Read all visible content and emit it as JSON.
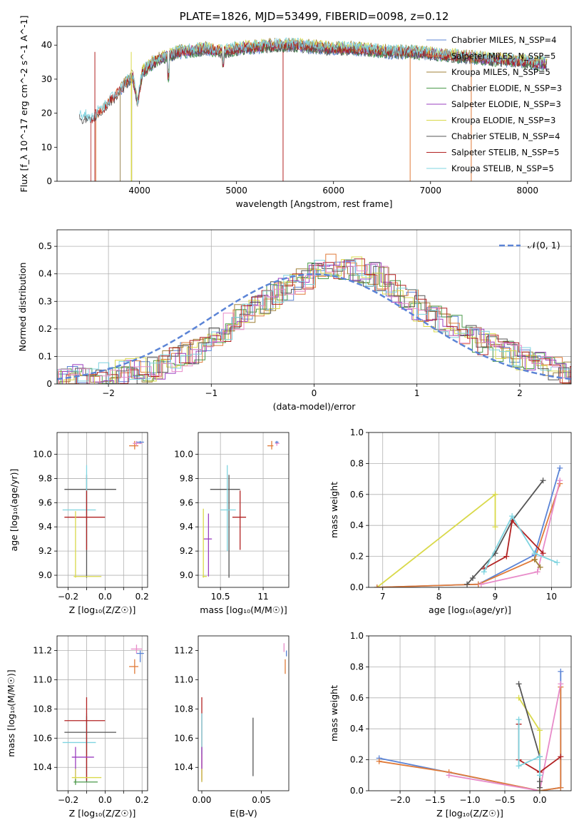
{
  "chart_data": [
    {
      "type": "line",
      "title": "PLATE=1826, MJD=53499, FIBERID=0098, z=0.12",
      "xlabel": "wavelength [Angstrom, rest frame]",
      "ylabel": "Flux [f_λ 10^-17 erg cm^-2 s^-1 A^-1]",
      "xlim": [
        3150,
        8450
      ],
      "ylim": [
        0,
        45.5
      ],
      "xticks": [
        4000,
        5000,
        6000,
        7000,
        8000
      ],
      "yticks": [
        0,
        10,
        20,
        30,
        40
      ],
      "grid": false,
      "legend_position": "top-right",
      "spectrum_shape": {
        "x": [
          3380,
          3450,
          3500,
          3560,
          3620,
          3700,
          3780,
          3860,
          3930,
          3980,
          4030,
          4100,
          4200,
          4300,
          4400,
          4550,
          4700,
          4850,
          5000,
          5200,
          5400,
          5600,
          5800,
          6000,
          6200,
          6400,
          6600,
          6800,
          7000,
          7200,
          7400,
          7600,
          7800,
          8000,
          8200
        ],
        "y": [
          19,
          19,
          18,
          20,
          21,
          24,
          26,
          29,
          31,
          23,
          32,
          34,
          36,
          37,
          38,
          38.5,
          39,
          38,
          39,
          39.5,
          40,
          40,
          39.5,
          39,
          39,
          38.5,
          38,
          38,
          37.5,
          37,
          36.5,
          36,
          35.5,
          35,
          34.5
        ]
      },
      "series": [
        {
          "name": "Chabrier MILES, N_SSP=4",
          "color": "#5b84d6",
          "x_start": 3800
        },
        {
          "name": "Salpeter MILES, N_SSP=5",
          "color": "#e07b39",
          "x_start": 3550
        },
        {
          "name": "Kroupa MILES, N_SSP=5",
          "color": "#a0823a",
          "x_start": 3800
        },
        {
          "name": "Chabrier ELODIE, N_SSP=3",
          "color": "#4a9a4a",
          "x_start": 3920
        },
        {
          "name": "Salpeter ELODIE, N_SSP=3",
          "color": "#9b3fc0",
          "x_start": 3920
        },
        {
          "name": "Kroupa ELODIE, N_SSP=3",
          "color": "#d9d94a",
          "x_start": 3920
        },
        {
          "name": "Chabrier STELIB, N_SSP=4",
          "color": "#555555",
          "x_start": 3380
        },
        {
          "name": "Salpeter STELIB, N_SSP=5",
          "color": "#b22222",
          "x_start": 3500
        },
        {
          "name": "Kroupa STELIB, N_SSP=5",
          "color": "#7fd4e0",
          "x_start": 3380
        }
      ]
    },
    {
      "type": "histogram",
      "xlabel": "(data-model)/error",
      "ylabel": "Normed distribution",
      "xlim": [
        -2.5,
        2.5
      ],
      "ylim": [
        0,
        0.56
      ],
      "xticks": [
        -2,
        -1,
        0,
        1,
        2
      ],
      "yticks": [
        0.0,
        0.1,
        0.2,
        0.3,
        0.4,
        0.5
      ],
      "grid": true,
      "legend_position": "top-right",
      "reference_curve": {
        "name": "𝒩(0, 1)",
        "color": "#5b84d6",
        "mean": 0,
        "sigma": 1
      },
      "bin_width": 0.1,
      "base_profile": {
        "x": [
          -2.5,
          -2.0,
          -1.5,
          -1.0,
          -0.8,
          -0.5,
          -0.2,
          0.0,
          0.2,
          0.4,
          0.7,
          1.0,
          1.3,
          1.6,
          2.0,
          2.5
        ],
        "y": [
          0.02,
          0.03,
          0.06,
          0.15,
          0.22,
          0.3,
          0.36,
          0.4,
          0.43,
          0.42,
          0.38,
          0.28,
          0.22,
          0.16,
          0.09,
          0.04
        ]
      },
      "series_colors": [
        "#5b84d6",
        "#e07b39",
        "#a0823a",
        "#4a9a4a",
        "#9b3fc0",
        "#d9d94a",
        "#555555",
        "#b22222",
        "#7fd4e0",
        "#e88bc9"
      ]
    },
    {
      "type": "errorbar",
      "xlabel": "Z [log₁₀(Z/Z☉)]",
      "ylabel": "age  [log₁₀(age/yr)]",
      "xlim": [
        -0.26,
        0.23
      ],
      "ylim": [
        8.9,
        10.18
      ],
      "xticks": [
        -0.2,
        -0.1,
        0.0,
        0.1,
        0.2
      ],
      "xtick_labels": [
        "−0.2",
        "",
        "0.0",
        "",
        "0.2"
      ],
      "yticks": [
        9.0,
        9.2,
        9.4,
        9.6,
        9.8,
        10.0
      ],
      "grid": true,
      "points": [
        {
          "x": -0.1,
          "y": 9.71,
          "xerr": [
            0.12,
            0.16
          ],
          "yerr": [
            0.73,
            0.12
          ],
          "color": "#555555"
        },
        {
          "x": -0.1,
          "y": 9.54,
          "xerr": [
            0.13,
            0.05
          ],
          "yerr": [
            0.3,
            0.37
          ],
          "color": "#7fd4e0"
        },
        {
          "x": -0.1,
          "y": 9.48,
          "xerr": [
            0.12,
            0.1
          ],
          "yerr": [
            0.27,
            0.22
          ],
          "color": "#b22222"
        },
        {
          "x": -0.16,
          "y": 8.99,
          "xerr": [
            0.01,
            0.14
          ],
          "yerr": [
            0.01,
            0.54
          ],
          "color": "#d9d94a"
        },
        {
          "x": 0.16,
          "y": 10.07,
          "xerr": [
            0.03,
            0.02
          ],
          "yerr": [
            0.03,
            0.04
          ],
          "color": "#e07b39"
        },
        {
          "x": 0.17,
          "y": 10.09,
          "xerr": [
            0.02,
            0.03
          ],
          "yerr": [
            0.02,
            0.02
          ],
          "color": "#e88bc9"
        },
        {
          "x": 0.19,
          "y": 10.1,
          "xerr": [
            0.02,
            0.02
          ],
          "yerr": [
            0.01,
            0.01
          ],
          "color": "#5b84d6"
        }
      ]
    },
    {
      "type": "errorbar",
      "xlabel": "mass [log₁₀(M/M☉)]",
      "xlim": [
        10.24,
        11.3
      ],
      "ylim": [
        8.9,
        10.18
      ],
      "xticks": [
        10.5,
        11.0
      ],
      "yticks": [
        9.0,
        9.2,
        9.4,
        9.6,
        9.8,
        10.0
      ],
      "grid": true,
      "points": [
        {
          "x": 10.6,
          "y": 9.71,
          "xerr": [
            0.22,
            0.13
          ],
          "yerr": [
            0.73,
            0.12
          ],
          "color": "#555555"
        },
        {
          "x": 10.58,
          "y": 9.54,
          "xerr": [
            0.08,
            0.1
          ],
          "yerr": [
            0.34,
            0.37
          ],
          "color": "#7fd4e0"
        },
        {
          "x": 10.73,
          "y": 9.48,
          "xerr": [
            0.09,
            0.07
          ],
          "yerr": [
            0.27,
            0.22
          ],
          "color": "#b22222"
        },
        {
          "x": 10.36,
          "y": 9.3,
          "xerr": [
            0.06,
            0.04
          ],
          "yerr": [
            0.31,
            0.21
          ],
          "color": "#9b3fc0"
        },
        {
          "x": 10.3,
          "y": 8.99,
          "xerr": [
            0.01,
            0.04
          ],
          "yerr": [
            0.01,
            0.56
          ],
          "color": "#d9d94a"
        },
        {
          "x": 11.1,
          "y": 10.07,
          "xerr": [
            0.05,
            0.02
          ],
          "yerr": [
            0.03,
            0.04
          ],
          "color": "#e07b39"
        },
        {
          "x": 11.16,
          "y": 10.09,
          "xerr": [
            0.02,
            0.03
          ],
          "yerr": [
            0.02,
            0.02
          ],
          "color": "#e88bc9"
        },
        {
          "x": 11.16,
          "y": 10.1,
          "xerr": [
            0.02,
            0.02
          ],
          "yerr": [
            0.01,
            0.01
          ],
          "color": "#5b84d6"
        }
      ]
    },
    {
      "type": "line",
      "xlabel": "age  [log₁₀(age/yr)]",
      "ylabel": "mass weight",
      "xlim": [
        6.75,
        10.35
      ],
      "ylim": [
        0,
        1
      ],
      "xticks": [
        7,
        8,
        9,
        10
      ],
      "yticks": [
        0.0,
        0.2,
        0.4,
        0.6,
        0.8,
        1.0
      ],
      "grid": true,
      "series": [
        {
          "color": "#d9d94a",
          "x": [
            6.9,
            9.0,
            9.0
          ],
          "y": [
            0.0,
            0.6,
            0.39
          ]
        },
        {
          "color": "#5b84d6",
          "x": [
            6.9,
            8.7,
            9.7,
            10.15
          ],
          "y": [
            0.0,
            0.02,
            0.21,
            0.77
          ]
        },
        {
          "color": "#e07b39",
          "x": [
            6.9,
            8.7,
            9.7,
            10.15
          ],
          "y": [
            0.0,
            0.02,
            0.18,
            0.67
          ]
        },
        {
          "color": "#e88bc9",
          "x": [
            8.75,
            9.75,
            10.15
          ],
          "y": [
            0.02,
            0.1,
            0.69
          ]
        },
        {
          "color": "#555555",
          "x": [
            8.5,
            8.6,
            9.0,
            9.3,
            9.85
          ],
          "y": [
            0.02,
            0.06,
            0.22,
            0.43,
            0.69
          ]
        },
        {
          "color": "#b22222",
          "x": [
            8.8,
            9.2,
            9.3,
            9.85
          ],
          "y": [
            0.12,
            0.2,
            0.43,
            0.22
          ]
        },
        {
          "color": "#7fd4e0",
          "x": [
            8.8,
            9.3,
            9.7,
            10.1
          ],
          "y": [
            0.1,
            0.46,
            0.22,
            0.16
          ]
        },
        {
          "color": "#a0823a",
          "x": [
            9.8,
            9.7
          ],
          "y": [
            0.13,
            0.18
          ]
        }
      ]
    },
    {
      "type": "errorbar",
      "xlabel": "Z [log₁₀(Z/Z☉)]",
      "ylabel": "mass [log₁₀(M/M☉)]",
      "xlim": [
        -0.26,
        0.23
      ],
      "ylim": [
        10.24,
        11.3
      ],
      "xticks": [
        -0.2,
        -0.1,
        0.0,
        0.1,
        0.2
      ],
      "xtick_labels": [
        "−0.2",
        "",
        "0.0",
        "",
        "0.2"
      ],
      "yticks": [
        10.4,
        10.6,
        10.8,
        11.0,
        11.2
      ],
      "grid": true,
      "points": [
        {
          "x": -0.1,
          "y": 10.64,
          "xerr": [
            0.12,
            0.16
          ],
          "yerr": [
            0.34,
            0.11
          ],
          "color": "#555555"
        },
        {
          "x": -0.1,
          "y": 10.57,
          "xerr": [
            0.13,
            0.05
          ],
          "yerr": [
            0.08,
            0.2
          ],
          "color": "#7fd4e0"
        },
        {
          "x": -0.1,
          "y": 10.72,
          "xerr": [
            0.12,
            0.1
          ],
          "yerr": [
            0.41,
            0.16
          ],
          "color": "#b22222"
        },
        {
          "x": -0.16,
          "y": 10.47,
          "xerr": [
            0.02,
            0.1
          ],
          "yerr": [
            0.17,
            0.07
          ],
          "color": "#9b3fc0"
        },
        {
          "x": -0.16,
          "y": 10.33,
          "xerr": [
            0.02,
            0.14
          ],
          "yerr": [
            0.03,
            0.06
          ],
          "color": "#d9d94a"
        },
        {
          "x": -0.16,
          "y": 10.3,
          "xerr": [
            0.01,
            0.12
          ],
          "yerr": [
            0.02,
            0.02
          ],
          "color": "#4a9a4a"
        },
        {
          "x": 0.16,
          "y": 11.09,
          "xerr": [
            0.03,
            0.02
          ],
          "yerr": [
            0.05,
            0.05
          ],
          "color": "#e07b39"
        },
        {
          "x": 0.17,
          "y": 11.21,
          "xerr": [
            0.03,
            0.03
          ],
          "yerr": [
            0.03,
            0.03
          ],
          "color": "#e88bc9"
        },
        {
          "x": 0.19,
          "y": 11.18,
          "xerr": [
            0.02,
            0.02
          ],
          "yerr": [
            0.06,
            0.02
          ],
          "color": "#5b84d6"
        }
      ]
    },
    {
      "type": "errorbar",
      "xlabel": "E(B-V)",
      "xlim": [
        -0.003,
        0.073
      ],
      "ylim": [
        10.24,
        11.3
      ],
      "xticks": [
        0.0,
        0.05
      ],
      "xtick_labels": [
        "0.00",
        "0.05"
      ],
      "yticks": [
        10.4,
        10.6,
        10.8,
        11.0,
        11.2
      ],
      "grid": false,
      "points": [
        {
          "x": 0.0,
          "y": 10.72,
          "yerr": [
            0.41,
            0.16
          ],
          "color": "#b22222"
        },
        {
          "x": 0.0,
          "y": 10.57,
          "yerr": [
            0.08,
            0.2
          ],
          "color": "#7fd4e0"
        },
        {
          "x": 0.0,
          "y": 10.47,
          "yerr": [
            0.17,
            0.07
          ],
          "color": "#9b3fc0"
        },
        {
          "x": 0.0,
          "y": 10.33,
          "yerr": [
            0.03,
            0.06
          ],
          "color": "#d9d94a"
        },
        {
          "x": 0.043,
          "y": 10.54,
          "yerr": [
            0.2,
            0.2
          ],
          "color": "#555555"
        },
        {
          "x": 0.069,
          "y": 11.22,
          "yerr": [
            0.03,
            0.03
          ],
          "color": "#e88bc9"
        },
        {
          "x": 0.07,
          "y": 11.09,
          "yerr": [
            0.05,
            0.05
          ],
          "color": "#e07b39"
        },
        {
          "x": 0.071,
          "y": 11.18,
          "yerr": [
            0.02,
            0.02
          ],
          "color": "#5b84d6"
        }
      ]
    },
    {
      "type": "line",
      "xlabel": "Z [log₁₀(Z/Z☉)]",
      "ylabel": "mass weight",
      "xlim": [
        -2.45,
        0.45
      ],
      "ylim": [
        0,
        1
      ],
      "xticks": [
        -2.0,
        -1.5,
        -1.0,
        -0.5,
        0.0
      ],
      "xtick_labels": [
        "−2.0",
        "−1.5",
        "−1.0",
        "−0.5",
        "0.0"
      ],
      "yticks": [
        0.0,
        0.2,
        0.4,
        0.6,
        0.8,
        1.0
      ],
      "grid": true,
      "series": [
        {
          "color": "#5b84d6",
          "x": [
            -2.3,
            0.0,
            0.3,
            0.3
          ],
          "y": [
            0.21,
            0.0,
            0.02,
            0.77
          ]
        },
        {
          "color": "#e07b39",
          "x": [
            -2.3,
            -1.3,
            0.0,
            0.3,
            0.3
          ],
          "y": [
            0.19,
            0.12,
            0.0,
            0.02,
            0.67
          ]
        },
        {
          "color": "#e88bc9",
          "x": [
            -1.3,
            0.0,
            0.3
          ],
          "y": [
            0.1,
            0.0,
            0.69
          ]
        },
        {
          "color": "#d9d94a",
          "x": [
            -0.3,
            0.0,
            0.0
          ],
          "y": [
            0.6,
            0.39,
            0.0
          ]
        },
        {
          "color": "#555555",
          "x": [
            -0.3,
            0.0,
            0.0,
            0.0
          ],
          "y": [
            0.69,
            0.22,
            0.06,
            0.02
          ]
        },
        {
          "color": "#b22222",
          "x": [
            -0.3,
            -0.3,
            0.0,
            0.3
          ],
          "y": [
            0.43,
            0.2,
            0.12,
            0.22
          ]
        },
        {
          "color": "#7fd4e0",
          "x": [
            -0.3,
            -0.3,
            0.0,
            0.0
          ],
          "y": [
            0.46,
            0.16,
            0.22,
            0.1
          ]
        }
      ]
    }
  ]
}
